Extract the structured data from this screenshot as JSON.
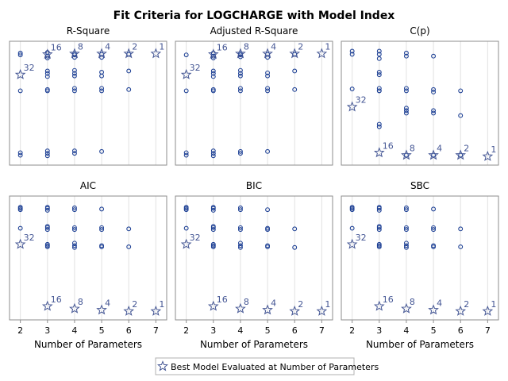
{
  "title": "Fit Criteria for LOGCHARGE with Model Index",
  "colors": {
    "marker": "#1c3f94",
    "best_label": "#445694",
    "frame": "#8c8c8c",
    "grid": "#e2e2e2",
    "text": "#000000"
  },
  "chart_data": [
    {
      "type": "scatter",
      "title": "R-Square",
      "xlabel": "Number of Parameters",
      "xlim": [
        1.6,
        7.4
      ],
      "ylim": [
        0.0,
        1.0
      ],
      "x_ticks": [
        2,
        3,
        4,
        5,
        6,
        7
      ],
      "y_axis_visible": false,
      "grid": "vertical",
      "series": [
        {
          "marker": "circle",
          "points": [
            [
              2,
              0.89
            ],
            [
              2,
              0.905
            ],
            [
              2,
              0.1
            ],
            [
              2,
              0.08
            ],
            [
              2,
              0.6
            ],
            [
              3,
              0.865
            ],
            [
              3,
              0.88
            ],
            [
              3,
              0.91
            ],
            [
              3,
              0.715
            ],
            [
              3,
              0.74
            ],
            [
              3,
              0.76
            ],
            [
              3,
              0.6
            ],
            [
              3,
              0.61
            ],
            [
              3,
              0.095
            ],
            [
              3,
              0.115
            ],
            [
              3,
              0.075
            ],
            [
              4,
              0.87
            ],
            [
              4,
              0.89
            ],
            [
              4,
              0.9
            ],
            [
              4,
              0.72
            ],
            [
              4,
              0.74
            ],
            [
              4,
              0.765
            ],
            [
              4,
              0.6
            ],
            [
              4,
              0.62
            ],
            [
              4,
              0.095
            ],
            [
              4,
              0.115
            ],
            [
              5,
              0.87
            ],
            [
              5,
              0.895
            ],
            [
              5,
              0.72
            ],
            [
              5,
              0.75
            ],
            [
              5,
              0.6
            ],
            [
              5,
              0.62
            ],
            [
              5,
              0.11
            ],
            [
              6,
              0.895
            ],
            [
              6,
              0.76
            ],
            [
              6,
              0.61
            ]
          ]
        },
        {
          "marker": "star",
          "name": "Best Model Evaluated at Number of Parameters",
          "points": [
            [
              2,
              0.73
            ],
            [
              3,
              0.895
            ],
            [
              4,
              0.9
            ],
            [
              5,
              0.9
            ],
            [
              6,
              0.9
            ],
            [
              7,
              0.9
            ]
          ],
          "labels": [
            "32",
            "16",
            "8",
            "4",
            "2",
            "1"
          ]
        }
      ]
    },
    {
      "type": "scatter",
      "title": "Adjusted R-Square",
      "xlabel": "Number of Parameters",
      "xlim": [
        1.6,
        7.4
      ],
      "ylim": [
        0.0,
        1.0
      ],
      "x_ticks": [
        2,
        3,
        4,
        5,
        6,
        7
      ],
      "y_axis_visible": false,
      "grid": "vertical",
      "series": [
        {
          "marker": "circle",
          "points": [
            [
              2,
              0.89
            ],
            [
              2,
              0.1
            ],
            [
              2,
              0.08
            ],
            [
              2,
              0.6
            ],
            [
              3,
              0.865
            ],
            [
              3,
              0.88
            ],
            [
              3,
              0.905
            ],
            [
              3,
              0.715
            ],
            [
              3,
              0.74
            ],
            [
              3,
              0.76
            ],
            [
              3,
              0.6
            ],
            [
              3,
              0.61
            ],
            [
              3,
              0.095
            ],
            [
              3,
              0.115
            ],
            [
              3,
              0.075
            ],
            [
              4,
              0.875
            ],
            [
              4,
              0.89
            ],
            [
              4,
              0.9
            ],
            [
              4,
              0.72
            ],
            [
              4,
              0.74
            ],
            [
              4,
              0.765
            ],
            [
              4,
              0.6
            ],
            [
              4,
              0.62
            ],
            [
              4,
              0.095
            ],
            [
              4,
              0.11
            ],
            [
              5,
              0.87
            ],
            [
              5,
              0.895
            ],
            [
              5,
              0.72
            ],
            [
              5,
              0.745
            ],
            [
              5,
              0.6
            ],
            [
              5,
              0.62
            ],
            [
              5,
              0.11
            ],
            [
              6,
              0.895
            ],
            [
              6,
              0.76
            ],
            [
              6,
              0.61
            ]
          ]
        },
        {
          "marker": "star",
          "name": "Best Model Evaluated at Number of Parameters",
          "points": [
            [
              2,
              0.73
            ],
            [
              3,
              0.895
            ],
            [
              4,
              0.9
            ],
            [
              5,
              0.9
            ],
            [
              6,
              0.9
            ],
            [
              7,
              0.9
            ]
          ],
          "labels": [
            "32",
            "16",
            "8",
            "4",
            "2",
            "1"
          ]
        }
      ]
    },
    {
      "type": "scatter",
      "title": "C(p)",
      "xlabel": "Number of Parameters",
      "xlim": [
        1.6,
        7.4
      ],
      "ylim": [
        0.0,
        1.0
      ],
      "x_ticks": [
        2,
        3,
        4,
        5,
        6,
        7
      ],
      "y_axis_visible": false,
      "grid": "vertical",
      "series": [
        {
          "marker": "circle",
          "points": [
            [
              2,
              0.92
            ],
            [
              2,
              0.895
            ],
            [
              2,
              0.615
            ],
            [
              3,
              0.92
            ],
            [
              3,
              0.895
            ],
            [
              3,
              0.86
            ],
            [
              3,
              0.75
            ],
            [
              3,
              0.73
            ],
            [
              3,
              0.62
            ],
            [
              3,
              0.6
            ],
            [
              3,
              0.6
            ],
            [
              3,
              0.31
            ],
            [
              3,
              0.33
            ],
            [
              4,
              0.905
            ],
            [
              4,
              0.88
            ],
            [
              4,
              0.62
            ],
            [
              4,
              0.6
            ],
            [
              4,
              0.46
            ],
            [
              4,
              0.44
            ],
            [
              4,
              0.42
            ],
            [
              4,
              0.08
            ],
            [
              5,
              0.88
            ],
            [
              5,
              0.61
            ],
            [
              5,
              0.59
            ],
            [
              5,
              0.44
            ],
            [
              5,
              0.42
            ],
            [
              5,
              0.08
            ],
            [
              6,
              0.6
            ],
            [
              6,
              0.4
            ],
            [
              6,
              0.08
            ]
          ]
        },
        {
          "marker": "star",
          "name": "Best Model Evaluated at Number of Parameters",
          "points": [
            [
              2,
              0.47
            ],
            [
              3,
              0.1
            ],
            [
              4,
              0.08
            ],
            [
              5,
              0.08
            ],
            [
              6,
              0.08
            ],
            [
              7,
              0.07
            ]
          ],
          "labels": [
            "32",
            "16",
            "8",
            "4",
            "2",
            "1"
          ]
        }
      ]
    },
    {
      "type": "scatter",
      "title": "AIC",
      "xlabel": "Number of Parameters",
      "xlim": [
        1.6,
        7.4
      ],
      "ylim": [
        0.0,
        1.0
      ],
      "x_ticks": [
        2,
        3,
        4,
        5,
        6,
        7
      ],
      "y_axis_visible": false,
      "grid": "vertical",
      "series": [
        {
          "marker": "circle",
          "points": [
            [
              2,
              0.89
            ],
            [
              2,
              0.9
            ],
            [
              2,
              0.91
            ],
            [
              2,
              0.74
            ],
            [
              3,
              0.885
            ],
            [
              3,
              0.9
            ],
            [
              3,
              0.91
            ],
            [
              3,
              0.745
            ],
            [
              3,
              0.755
            ],
            [
              3,
              0.73
            ],
            [
              3,
              0.59
            ],
            [
              3,
              0.6
            ],
            [
              3,
              0.61
            ],
            [
              4,
              0.89
            ],
            [
              4,
              0.905
            ],
            [
              4,
              0.745
            ],
            [
              4,
              0.73
            ],
            [
              4,
              0.6
            ],
            [
              4,
              0.585
            ],
            [
              4,
              0.62
            ],
            [
              5,
              0.895
            ],
            [
              5,
              0.745
            ],
            [
              5,
              0.73
            ],
            [
              5,
              0.6
            ],
            [
              5,
              0.59
            ],
            [
              6,
              0.735
            ],
            [
              6,
              0.59
            ]
          ]
        },
        {
          "marker": "star",
          "name": "Best Model Evaluated at Number of Parameters",
          "points": [
            [
              2,
              0.61
            ],
            [
              3,
              0.11
            ],
            [
              4,
              0.09
            ],
            [
              5,
              0.08
            ],
            [
              6,
              0.07
            ],
            [
              7,
              0.07
            ]
          ],
          "labels": [
            "32",
            "16",
            "8",
            "4",
            "2",
            "1"
          ]
        }
      ]
    },
    {
      "type": "scatter",
      "title": "BIC",
      "xlabel": "Number of Parameters",
      "xlim": [
        1.6,
        7.4
      ],
      "ylim": [
        0.0,
        1.0
      ],
      "x_ticks": [
        2,
        3,
        4,
        5,
        6,
        7
      ],
      "y_axis_visible": false,
      "grid": "vertical",
      "series": [
        {
          "marker": "circle",
          "points": [
            [
              2,
              0.89
            ],
            [
              2,
              0.9
            ],
            [
              2,
              0.91
            ],
            [
              2,
              0.74
            ],
            [
              3,
              0.885
            ],
            [
              3,
              0.9
            ],
            [
              3,
              0.91
            ],
            [
              3,
              0.745
            ],
            [
              3,
              0.755
            ],
            [
              3,
              0.73
            ],
            [
              3,
              0.59
            ],
            [
              3,
              0.6
            ],
            [
              3,
              0.61
            ],
            [
              4,
              0.89
            ],
            [
              4,
              0.905
            ],
            [
              4,
              0.745
            ],
            [
              4,
              0.73
            ],
            [
              4,
              0.6
            ],
            [
              4,
              0.585
            ],
            [
              4,
              0.62
            ],
            [
              5,
              0.89
            ],
            [
              5,
              0.74
            ],
            [
              5,
              0.73
            ],
            [
              5,
              0.6
            ],
            [
              5,
              0.59
            ],
            [
              6,
              0.735
            ],
            [
              6,
              0.585
            ]
          ]
        },
        {
          "marker": "star",
          "name": "Best Model Evaluated at Number of Parameters",
          "points": [
            [
              2,
              0.61
            ],
            [
              3,
              0.11
            ],
            [
              4,
              0.09
            ],
            [
              5,
              0.08
            ],
            [
              6,
              0.07
            ],
            [
              7,
              0.07
            ]
          ],
          "labels": [
            "32",
            "16",
            "8",
            "4",
            "2",
            "1"
          ]
        }
      ]
    },
    {
      "type": "scatter",
      "title": "SBC",
      "xlabel": "Number of Parameters",
      "xlim": [
        1.6,
        7.4
      ],
      "ylim": [
        0.0,
        1.0
      ],
      "x_ticks": [
        2,
        3,
        4,
        5,
        6,
        7
      ],
      "y_axis_visible": false,
      "grid": "vertical",
      "series": [
        {
          "marker": "circle",
          "points": [
            [
              2,
              0.89
            ],
            [
              2,
              0.9
            ],
            [
              2,
              0.91
            ],
            [
              2,
              0.74
            ],
            [
              3,
              0.885
            ],
            [
              3,
              0.9
            ],
            [
              3,
              0.91
            ],
            [
              3,
              0.745
            ],
            [
              3,
              0.755
            ],
            [
              3,
              0.73
            ],
            [
              3,
              0.59
            ],
            [
              3,
              0.6
            ],
            [
              3,
              0.61
            ],
            [
              4,
              0.89
            ],
            [
              4,
              0.905
            ],
            [
              4,
              0.745
            ],
            [
              4,
              0.73
            ],
            [
              4,
              0.6
            ],
            [
              4,
              0.585
            ],
            [
              4,
              0.62
            ],
            [
              5,
              0.895
            ],
            [
              5,
              0.745
            ],
            [
              5,
              0.73
            ],
            [
              5,
              0.6
            ],
            [
              5,
              0.59
            ],
            [
              6,
              0.735
            ],
            [
              6,
              0.59
            ]
          ]
        },
        {
          "marker": "star",
          "name": "Best Model Evaluated at Number of Parameters",
          "points": [
            [
              2,
              0.61
            ],
            [
              3,
              0.11
            ],
            [
              4,
              0.09
            ],
            [
              5,
              0.08
            ],
            [
              6,
              0.07
            ],
            [
              7,
              0.07
            ]
          ],
          "labels": [
            "32",
            "16",
            "8",
            "4",
            "2",
            "1"
          ]
        }
      ]
    }
  ],
  "legend": {
    "placement": "bottom-center",
    "label": "Best Model Evaluated at Number of Parameters",
    "marker": "star"
  }
}
